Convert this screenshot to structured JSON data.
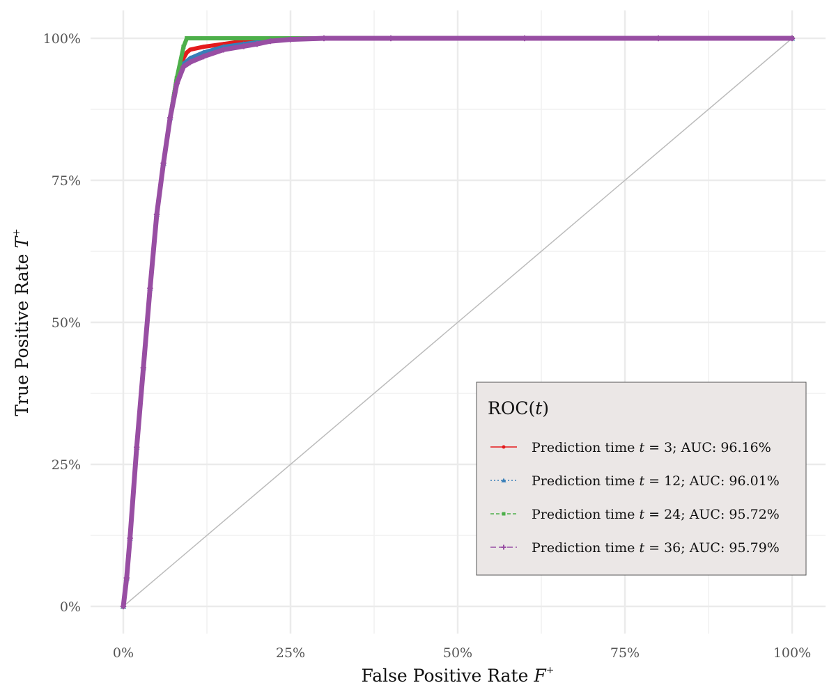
{
  "chart_data": {
    "type": "line",
    "title": "",
    "xlabel": "False Positive Rate",
    "xlabel_symbol": "F",
    "xlabel_sup": "+",
    "ylabel": "True Positive Rate",
    "ylabel_symbol": "T",
    "ylabel_sup": "+",
    "xlim": [
      0,
      1
    ],
    "ylim": [
      0,
      1
    ],
    "x_ticks": [
      0,
      0.25,
      0.5,
      0.75,
      1.0
    ],
    "x_tick_labels": [
      "0%",
      "25%",
      "50%",
      "75%",
      "100%"
    ],
    "y_ticks": [
      0,
      0.25,
      0.5,
      0.75,
      1.0
    ],
    "y_tick_labels": [
      "0%",
      "25%",
      "50%",
      "75%",
      "100%"
    ],
    "grid": true,
    "reference_line": {
      "x": [
        0,
        1
      ],
      "y": [
        0,
        1
      ],
      "color": "#bbbbbb"
    },
    "legend": {
      "position": "bottom-right",
      "title_prefix": "ROC",
      "title_var": "t",
      "background": "#ebe7e6",
      "entry_prefix": "Prediction time",
      "entry_var": "t",
      "entries": [
        {
          "time": "3",
          "auc_label": "AUC: 96.16%"
        },
        {
          "time": "12",
          "auc_label": "AUC: 96.01%"
        },
        {
          "time": "24",
          "auc_label": "AUC: 95.72%"
        },
        {
          "time": "36",
          "auc_label": "AUC: 95.79%"
        }
      ]
    },
    "series": [
      {
        "name": "Prediction time t = 3; AUC: 96.16%",
        "time": 3,
        "auc": 0.9616,
        "color": "#e41a1c",
        "marker": "circle",
        "dash": "solid",
        "x": [
          0,
          0.005,
          0.01,
          0.02,
          0.03,
          0.04,
          0.05,
          0.06,
          0.07,
          0.08,
          0.085,
          0.09,
          0.095,
          0.1,
          0.12,
          0.15,
          0.18,
          0.22,
          0.25,
          0.3,
          0.4,
          0.6,
          0.8,
          1.0
        ],
        "y": [
          0,
          0.05,
          0.12,
          0.28,
          0.42,
          0.56,
          0.69,
          0.78,
          0.86,
          0.93,
          0.95,
          0.965,
          0.975,
          0.98,
          0.985,
          0.99,
          0.995,
          0.998,
          1.0,
          1.0,
          1.0,
          1.0,
          1.0,
          1.0
        ]
      },
      {
        "name": "Prediction time t = 12; AUC: 96.01%",
        "time": 12,
        "auc": 0.9601,
        "color": "#377eb8",
        "marker": "triangle",
        "dash": "dotted",
        "x": [
          0,
          0.005,
          0.01,
          0.02,
          0.03,
          0.04,
          0.05,
          0.06,
          0.07,
          0.08,
          0.09,
          0.1,
          0.12,
          0.15,
          0.18,
          0.22,
          0.25,
          0.3,
          0.4,
          0.6,
          0.8,
          1.0
        ],
        "y": [
          0,
          0.05,
          0.12,
          0.28,
          0.42,
          0.56,
          0.69,
          0.78,
          0.86,
          0.93,
          0.955,
          0.965,
          0.975,
          0.985,
          0.99,
          0.996,
          0.999,
          1.0,
          1.0,
          1.0,
          1.0,
          1.0
        ]
      },
      {
        "name": "Prediction time t = 24; AUC: 95.72%",
        "time": 24,
        "auc": 0.9572,
        "color": "#4daf4a",
        "marker": "square",
        "dash": "dashed",
        "x": [
          0,
          0.005,
          0.01,
          0.02,
          0.03,
          0.04,
          0.05,
          0.06,
          0.07,
          0.08,
          0.09,
          0.095,
          0.12,
          0.2,
          0.4,
          0.6,
          0.8,
          1.0
        ],
        "y": [
          0,
          0.05,
          0.12,
          0.28,
          0.42,
          0.56,
          0.69,
          0.78,
          0.86,
          0.93,
          0.985,
          1.0,
          1.0,
          1.0,
          1.0,
          1.0,
          1.0,
          1.0
        ]
      },
      {
        "name": "Prediction time t = 36; AUC: 95.79%",
        "time": 36,
        "auc": 0.9579,
        "color": "#984ea3",
        "marker": "plus",
        "dash": "longdash",
        "x": [
          0,
          0.005,
          0.01,
          0.02,
          0.03,
          0.04,
          0.05,
          0.06,
          0.07,
          0.08,
          0.09,
          0.1,
          0.12,
          0.15,
          0.18,
          0.2,
          0.22,
          0.25,
          0.3,
          0.4,
          0.6,
          0.8,
          1.0
        ],
        "y": [
          0,
          0.05,
          0.12,
          0.28,
          0.42,
          0.56,
          0.69,
          0.78,
          0.86,
          0.92,
          0.95,
          0.958,
          0.968,
          0.98,
          0.986,
          0.99,
          0.995,
          0.998,
          1.0,
          1.0,
          1.0,
          1.0,
          1.0
        ]
      }
    ]
  }
}
